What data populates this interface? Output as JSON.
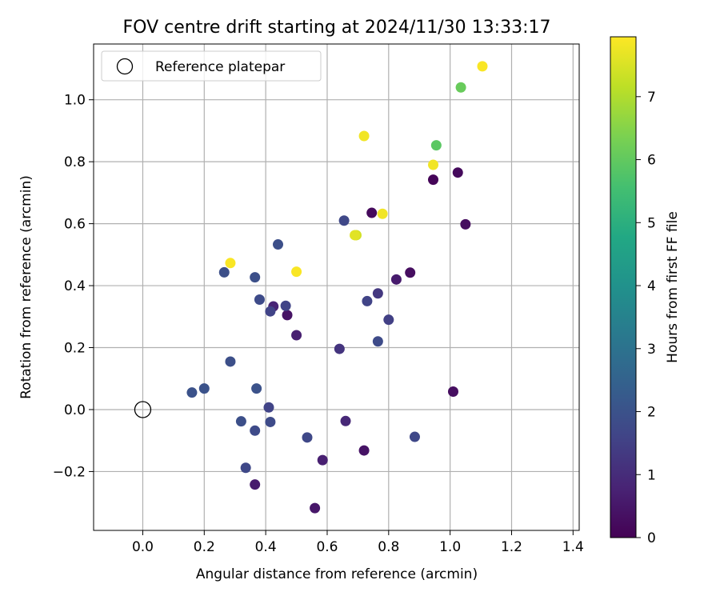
{
  "chart_data": {
    "type": "scatter",
    "title": "FOV centre drift starting at 2024/11/30 13:33:17",
    "xlabel": "Angular distance from reference (arcmin)",
    "ylabel": "Rotation from reference (arcmin)",
    "xlim": [
      -0.16,
      1.42
    ],
    "ylim": [
      -0.39,
      1.18
    ],
    "xticks": [
      0.0,
      0.2,
      0.4,
      0.6,
      0.8,
      1.0,
      1.2,
      1.4
    ],
    "xtick_labels": [
      "0.0",
      "0.2",
      "0.4",
      "0.6",
      "0.8",
      "1.0",
      "1.2",
      "1.4"
    ],
    "yticks": [
      -0.2,
      0.0,
      0.2,
      0.4,
      0.6,
      0.8,
      1.0
    ],
    "ytick_labels": [
      "−0.2",
      "0.0",
      "0.2",
      "0.4",
      "0.6",
      "0.8",
      "1.0"
    ],
    "grid": true,
    "legend": {
      "location": "top-left",
      "entries": [
        "Reference platepar"
      ]
    },
    "reference_point": {
      "x": 0.0,
      "y": 0.0,
      "label": "Reference platepar"
    },
    "colorbar": {
      "label": "Hours from first FF file",
      "range": [
        0,
        7.95
      ],
      "ticks": [
        0,
        1,
        2,
        3,
        4,
        5,
        6,
        7
      ],
      "tick_labels": [
        "0",
        "1",
        "2",
        "3",
        "4",
        "5",
        "6",
        "7"
      ],
      "colormap": "viridis"
    },
    "points": [
      {
        "x": 0.745,
        "y": 0.635,
        "hours": 0.2
      },
      {
        "x": 0.945,
        "y": 0.742,
        "hours": 0.1
      },
      {
        "x": 1.025,
        "y": 0.765,
        "hours": 0.2
      },
      {
        "x": 1.05,
        "y": 0.598,
        "hours": 0.3
      },
      {
        "x": 0.87,
        "y": 0.442,
        "hours": 0.3
      },
      {
        "x": 1.01,
        "y": 0.058,
        "hours": 0.3
      },
      {
        "x": 0.47,
        "y": 0.305,
        "hours": 0.4
      },
      {
        "x": 0.72,
        "y": -0.132,
        "hours": 0.4
      },
      {
        "x": 0.56,
        "y": -0.318,
        "hours": 0.5
      },
      {
        "x": 0.825,
        "y": 0.42,
        "hours": 0.6
      },
      {
        "x": 0.365,
        "y": -0.242,
        "hours": 0.6
      },
      {
        "x": 0.585,
        "y": -0.163,
        "hours": 0.7
      },
      {
        "x": 0.5,
        "y": 0.24,
        "hours": 0.7
      },
      {
        "x": 0.425,
        "y": 0.333,
        "hours": 0.8
      },
      {
        "x": 0.66,
        "y": -0.037,
        "hours": 0.9
      },
      {
        "x": 0.64,
        "y": 0.196,
        "hours": 1.2
      },
      {
        "x": 0.765,
        "y": 0.375,
        "hours": 1.3
      },
      {
        "x": 0.8,
        "y": 0.29,
        "hours": 1.5
      },
      {
        "x": 0.73,
        "y": 0.35,
        "hours": 1.6
      },
      {
        "x": 0.465,
        "y": 0.335,
        "hours": 1.6
      },
      {
        "x": 0.415,
        "y": 0.317,
        "hours": 1.6
      },
      {
        "x": 0.41,
        "y": 0.007,
        "hours": 1.6
      },
      {
        "x": 0.885,
        "y": -0.088,
        "hours": 1.7
      },
      {
        "x": 0.535,
        "y": -0.09,
        "hours": 1.7
      },
      {
        "x": 0.335,
        "y": -0.188,
        "hours": 1.7
      },
      {
        "x": 0.655,
        "y": 0.61,
        "hours": 1.7
      },
      {
        "x": 0.765,
        "y": 0.22,
        "hours": 1.8
      },
      {
        "x": 0.38,
        "y": 0.355,
        "hours": 1.8
      },
      {
        "x": 0.415,
        "y": -0.04,
        "hours": 1.8
      },
      {
        "x": 0.365,
        "y": -0.068,
        "hours": 1.8
      },
      {
        "x": 0.44,
        "y": 0.533,
        "hours": 1.9
      },
      {
        "x": 0.265,
        "y": 0.443,
        "hours": 1.9
      },
      {
        "x": 0.365,
        "y": 0.427,
        "hours": 1.9
      },
      {
        "x": 0.32,
        "y": -0.038,
        "hours": 1.9
      },
      {
        "x": 0.285,
        "y": 0.155,
        "hours": 1.9
      },
      {
        "x": 0.37,
        "y": 0.068,
        "hours": 2.0
      },
      {
        "x": 0.2,
        "y": 0.068,
        "hours": 2.0
      },
      {
        "x": 0.16,
        "y": 0.055,
        "hours": 2.0
      },
      {
        "x": 0.955,
        "y": 0.853,
        "hours": 5.9
      },
      {
        "x": 1.035,
        "y": 1.04,
        "hours": 6.1
      },
      {
        "x": 0.695,
        "y": 0.563,
        "hours": 7.4
      },
      {
        "x": 0.69,
        "y": 0.563,
        "hours": 7.6
      },
      {
        "x": 0.72,
        "y": 0.883,
        "hours": 7.8
      },
      {
        "x": 0.78,
        "y": 0.632,
        "hours": 7.8
      },
      {
        "x": 0.945,
        "y": 0.79,
        "hours": 7.8
      },
      {
        "x": 1.105,
        "y": 1.108,
        "hours": 7.9
      },
      {
        "x": 0.285,
        "y": 0.473,
        "hours": 7.9
      },
      {
        "x": 0.5,
        "y": 0.445,
        "hours": 7.9
      }
    ]
  }
}
